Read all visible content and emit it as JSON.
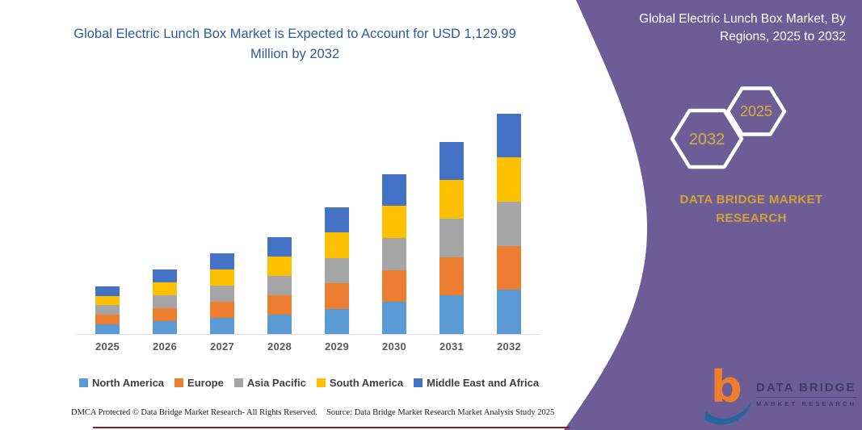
{
  "chart": {
    "title": "Global Electric Lunch Box Market is Expected to Account for USD 1,129.99 Million by 2032",
    "title_color": "#2E5B9E",
    "footnote_left": "DMCA Protected © Data Bridge Market Research-  All Rights Reserved.",
    "footnote_source": "Source: Data Bridge Market Research  Market Analysis Study 2025"
  },
  "chart_data": {
    "type": "bar",
    "stacked": true,
    "title": "Global Electric Lunch Box Market is Expected to Account for USD 1,129.99 Million by 2032",
    "unit": "USD Million",
    "categories": [
      "2025",
      "2026",
      "2027",
      "2028",
      "2029",
      "2030",
      "2031",
      "2032"
    ],
    "series": [
      {
        "name": "North America",
        "color": "#5B9BD5",
        "values": [
          49.0,
          66.0,
          82.6,
          99.2,
          130.0,
          164.0,
          197.0,
          226.0
        ]
      },
      {
        "name": "Europe",
        "color": "#ED7D31",
        "values": [
          49.0,
          66.0,
          82.6,
          99.2,
          130.0,
          164.0,
          197.0,
          226.0
        ]
      },
      {
        "name": "Asia Pacific",
        "color": "#A5A5A5",
        "values": [
          49.0,
          66.0,
          82.6,
          99.2,
          130.0,
          164.0,
          197.0,
          226.0
        ]
      },
      {
        "name": "South America",
        "color": "#FFC000",
        "values": [
          49.0,
          66.0,
          82.6,
          99.2,
          130.0,
          164.0,
          197.0,
          226.0
        ]
      },
      {
        "name": "Middle East and Africa",
        "color": "#4472C4",
        "values": [
          49.0,
          66.0,
          82.6,
          99.2,
          130.0,
          164.0,
          197.0,
          226.0
        ]
      }
    ],
    "totals": [
      245,
      330,
      413,
      496,
      650,
      820,
      985,
      1129.99
    ],
    "ylim": [
      0,
      1200
    ],
    "grid": false,
    "legend_position": "bottom",
    "yaxis_visible": false
  },
  "sidebar": {
    "title": "Global Electric Lunch Box Market, By Regions, 2025 to 2032",
    "panel_color": "#6C5D96",
    "hexagon_back_label": "2032",
    "hexagon_front_label": "2025",
    "brand_line1": "DATA BRIDGE MARKET",
    "brand_line2": "RESEARCH",
    "accent_gold": "#D2A437"
  },
  "logo": {
    "letter": "b",
    "line1": "DATA BRIDGE",
    "line2": "MARKET RESEARCH",
    "orange": "#F07D2B",
    "blue": "#2566A0"
  }
}
